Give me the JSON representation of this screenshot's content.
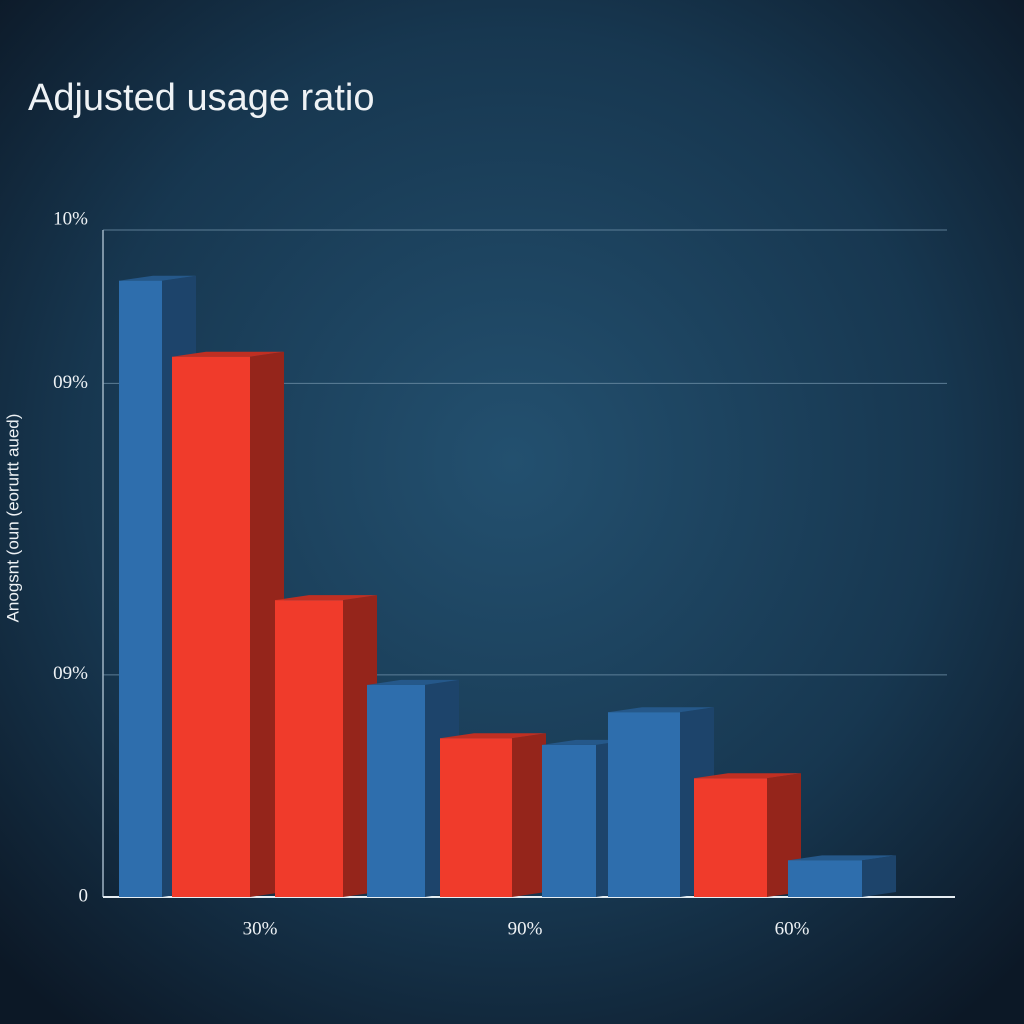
{
  "chart_data": {
    "type": "bar",
    "title": "Adjusted usage ratio",
    "y_label": "Anogsnt (oun (eorurtt aued)",
    "categories": [
      null,
      null,
      "30%",
      null,
      null,
      "90%",
      null,
      null,
      "60%"
    ],
    "values": [
      9.24,
      8.1,
      4.45,
      3.18,
      2.38,
      2.28,
      2.77,
      1.78,
      0.55
    ],
    "colors": [
      "#2e6ead",
      "#f03b2b",
      "#f03b2b",
      "#2e6ead",
      "#f03b2b",
      "#2e6ead",
      "#2e6ead",
      "#f03b2b",
      "#2e6ead"
    ],
    "ylim": [
      0,
      10
    ],
    "yticks": [
      0,
      {
        "value": 3.33,
        "label": "09%"
      },
      {
        "value": 7.7,
        "label": "09%"
      },
      {
        "value": 10,
        "label": "10%"
      }
    ],
    "grid": true
  }
}
